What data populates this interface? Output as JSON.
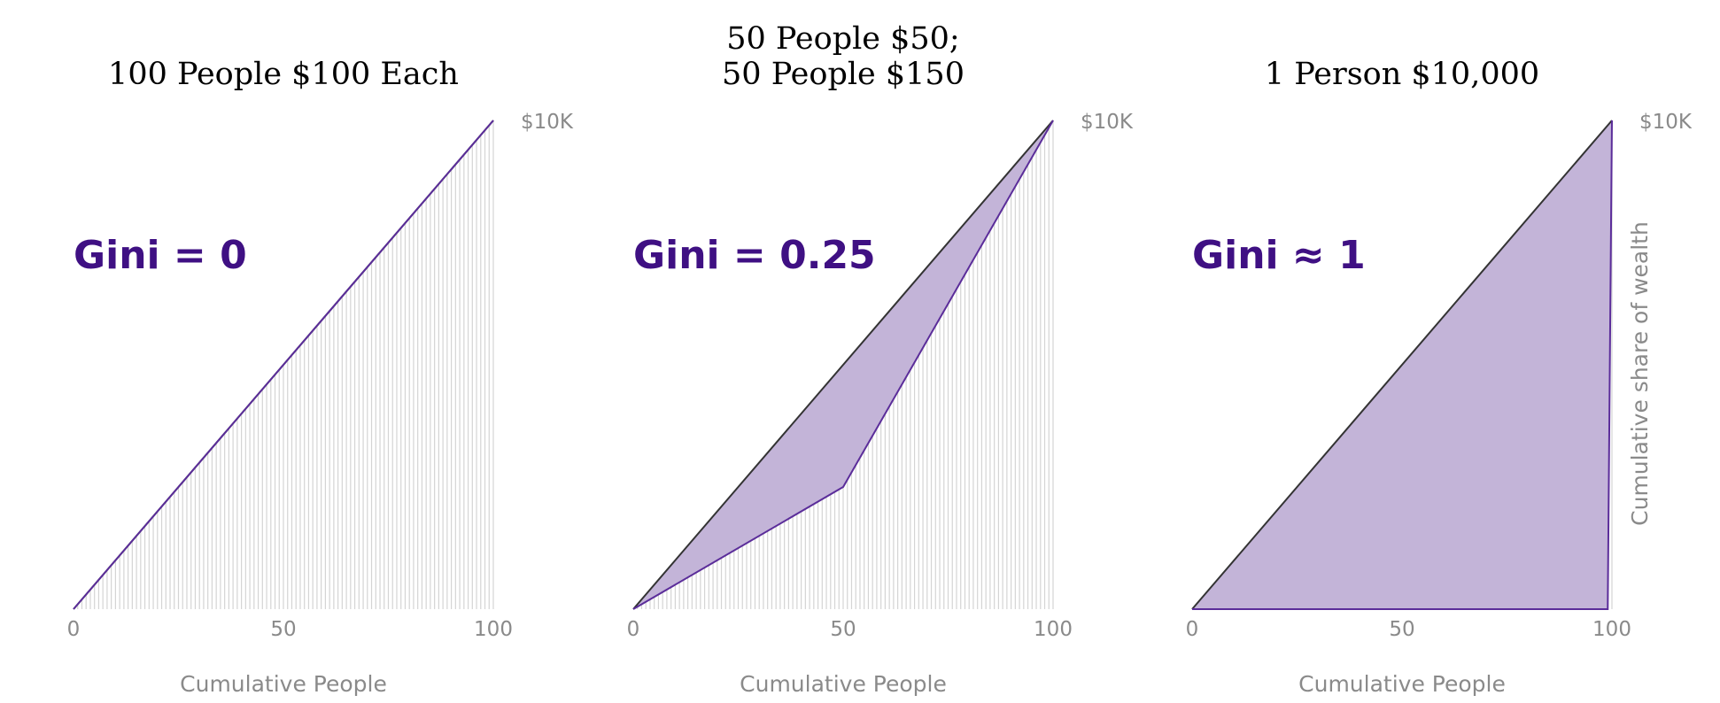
{
  "chart_data": [
    {
      "type": "area",
      "title_lines": [
        "100 People $100 Each"
      ],
      "annotation": "Gini = 0",
      "xlabel": "Cumulative People",
      "ylabel": "",
      "x_ticks": [
        "0",
        "50",
        "100"
      ],
      "y_tick": "$10K",
      "xlim": [
        0,
        100
      ],
      "ylim": [
        0,
        10000
      ],
      "people": 100,
      "wealth": [
        {
          "count": 100,
          "amount": 100
        }
      ],
      "lorenz_points": [
        [
          0,
          0
        ],
        [
          100,
          10000
        ]
      ]
    },
    {
      "type": "area",
      "title_lines": [
        "50 People $50;",
        "50 People $150"
      ],
      "annotation": "Gini = 0.25",
      "xlabel": "Cumulative People",
      "ylabel": "",
      "x_ticks": [
        "0",
        "50",
        "100"
      ],
      "y_tick": "$10K",
      "xlim": [
        0,
        100
      ],
      "ylim": [
        0,
        10000
      ],
      "people": 100,
      "wealth": [
        {
          "count": 50,
          "amount": 50
        },
        {
          "count": 50,
          "amount": 150
        }
      ],
      "lorenz_points": [
        [
          0,
          0
        ],
        [
          50,
          2500
        ],
        [
          100,
          10000
        ]
      ]
    },
    {
      "type": "area",
      "title_lines": [
        "1 Person $10,000"
      ],
      "annotation": "Gini ≈ 1",
      "xlabel": "Cumulative People",
      "ylabel": "Cumulative share of wealth",
      "x_ticks": [
        "0",
        "50",
        "100"
      ],
      "y_tick": "$10K",
      "xlim": [
        0,
        100
      ],
      "ylim": [
        0,
        10000
      ],
      "people": 100,
      "wealth": [
        {
          "count": 99,
          "amount": 0
        },
        {
          "count": 1,
          "amount": 10000
        }
      ],
      "lorenz_points": [
        [
          0,
          0
        ],
        [
          99,
          0
        ],
        [
          100,
          10000
        ]
      ]
    }
  ],
  "colors": {
    "fill": "#c3b4d8",
    "lorenz_line": "#5b2d9a",
    "equality_line": "#333333",
    "bar_line": "#d4d4d4",
    "annotation": "#3f1083",
    "tick_text": "#8a8a8a"
  }
}
